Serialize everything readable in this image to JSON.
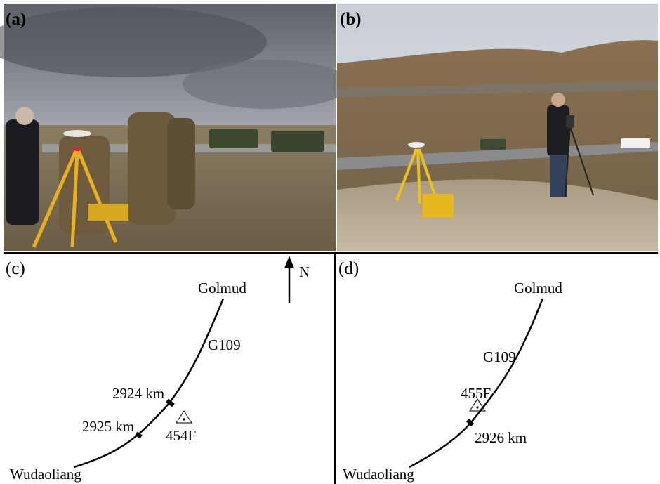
{
  "panels": [
    {
      "label": "(a)"
    },
    {
      "label": "(b)"
    },
    {
      "label": "(c)",
      "north": "N",
      "places": [
        "Golmud",
        "Wudaoliang"
      ],
      "road": "G109",
      "kilometers": [
        "2924 km",
        "2925 km"
      ],
      "station": "454F"
    },
    {
      "label": "(d)",
      "places": [
        "Golmud",
        "Wudaoliang"
      ],
      "road": "G109",
      "kilometers": [
        "2926 km"
      ],
      "station": "455F"
    }
  ]
}
